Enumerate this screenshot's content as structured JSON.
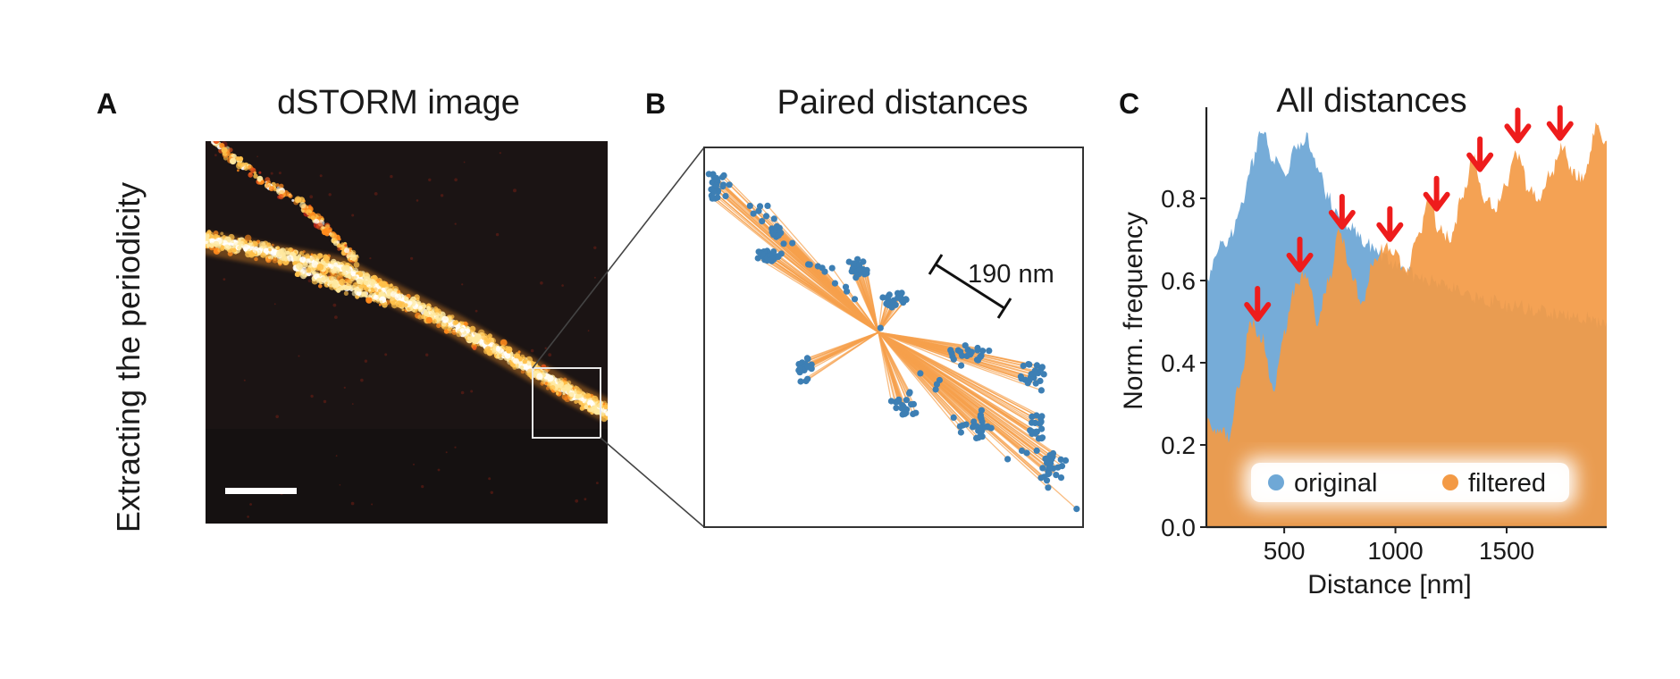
{
  "figure": {
    "row_label": "Extracting the periodicity",
    "panel_a": {
      "label": "A",
      "title": "dSTORM image"
    },
    "panel_b": {
      "label": "B",
      "title": "Paired distances",
      "scale_label": "190 nm"
    },
    "panel_c": {
      "label": "C",
      "title": "All distances"
    }
  },
  "colors": {
    "original": "#6fa8d6",
    "filtered": "#f39a45",
    "arrow": "#ee1c1c",
    "points": "#3d7fb4",
    "lines": "#f6a04c",
    "image_bg": "#1b1414"
  },
  "chart_data": {
    "type": "area",
    "title": "All distances",
    "xlabel": "Distance [nm]",
    "ylabel": "Norm. frequency",
    "xlim": [
      150,
      1950
    ],
    "ylim": [
      0,
      1.0
    ],
    "xticks": [
      500,
      1000,
      1500
    ],
    "yticks": [
      0.0,
      0.2,
      0.4,
      0.6,
      0.8
    ],
    "grid": false,
    "legend_position": "bottom-center",
    "series": [
      {
        "name": "original",
        "color": "#6fa8d6",
        "x": [
          150,
          200,
          250,
          300,
          350,
          400,
          450,
          500,
          550,
          600,
          650,
          700,
          750,
          800,
          850,
          900,
          950,
          1000,
          1050,
          1100,
          1150,
          1200,
          1250,
          1300,
          1350,
          1400,
          1450,
          1500,
          1550,
          1600,
          1650,
          1700,
          1750,
          1800,
          1850,
          1900,
          1950
        ],
        "values": [
          0.6,
          0.68,
          0.7,
          0.77,
          0.88,
          0.97,
          0.9,
          0.85,
          0.92,
          0.95,
          0.88,
          0.8,
          0.75,
          0.73,
          0.7,
          0.68,
          0.66,
          0.64,
          0.62,
          0.61,
          0.6,
          0.59,
          0.58,
          0.57,
          0.56,
          0.55,
          0.55,
          0.54,
          0.54,
          0.53,
          0.53,
          0.52,
          0.52,
          0.51,
          0.51,
          0.5,
          0.5
        ]
      },
      {
        "name": "filtered",
        "color": "#f39a45",
        "x": [
          150,
          200,
          250,
          300,
          350,
          400,
          450,
          500,
          550,
          600,
          650,
          700,
          750,
          800,
          850,
          900,
          950,
          1000,
          1050,
          1100,
          1150,
          1200,
          1250,
          1300,
          1350,
          1400,
          1450,
          1500,
          1550,
          1600,
          1650,
          1700,
          1750,
          1800,
          1850,
          1900,
          1950
        ],
        "values": [
          0.26,
          0.24,
          0.22,
          0.35,
          0.5,
          0.46,
          0.34,
          0.48,
          0.58,
          0.62,
          0.5,
          0.6,
          0.72,
          0.62,
          0.55,
          0.64,
          0.68,
          0.66,
          0.62,
          0.7,
          0.8,
          0.72,
          0.7,
          0.8,
          0.9,
          0.8,
          0.78,
          0.84,
          0.91,
          0.82,
          0.8,
          0.86,
          0.93,
          0.86,
          0.85,
          0.97,
          0.94
        ]
      }
    ],
    "annotations": {
      "peak_arrows_x": [
        380,
        570,
        760,
        975,
        1185,
        1380,
        1550,
        1740
      ]
    }
  }
}
